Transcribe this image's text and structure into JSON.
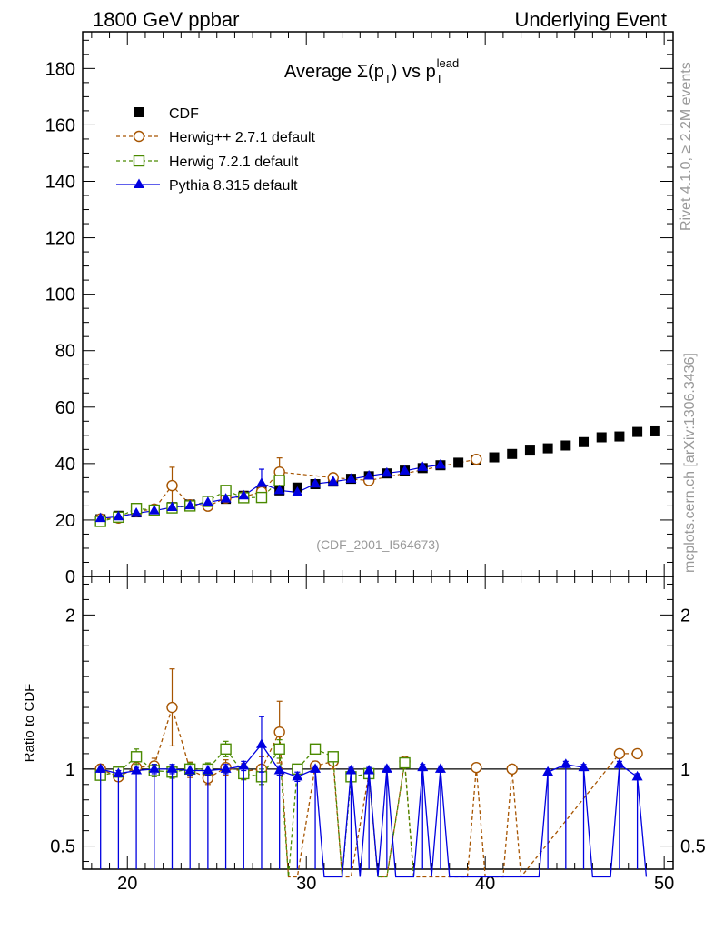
{
  "header": {
    "left": "1800 GeV ppbar",
    "right": "Underlying Event"
  },
  "side": {
    "rivet": "Rivet 4.1.0, ≥ 2.2M events",
    "mcplots": "mcplots.cern.ch [arXiv:1306.3436]"
  },
  "colors": {
    "cdf": "#000000",
    "herwigpp": "#a65400",
    "herwig7": "#4a8a00",
    "pythia": "#0000e0",
    "ref": "#999999"
  },
  "chart_data": {
    "type": "scatter",
    "title_parts": {
      "lead": "Average ",
      "sigma": "Σ(p",
      "t": "T",
      "close": ")",
      "vs": " vs p",
      "lead_sup": "lead"
    },
    "reference": "(CDF_2001_I564673)",
    "xlabel": "",
    "ylabel_main": "",
    "ylabel_ratio": "Ratio to CDF",
    "xlim": [
      17.5,
      50.5
    ],
    "ylim": [
      0,
      193
    ],
    "ratio_ylim": [
      0.35,
      2.25
    ],
    "x_ticks": [
      20,
      30,
      40,
      50
    ],
    "y_ticks": [
      0,
      20,
      40,
      60,
      80,
      100,
      120,
      140,
      160,
      180
    ],
    "ratio_ticks": [
      0.5,
      1,
      2
    ],
    "legend": [
      {
        "label": "CDF",
        "key": "cdf"
      },
      {
        "label": "Herwig++ 2.7.1 default",
        "key": "herwigpp"
      },
      {
        "label": "Herwig 7.2.1 default",
        "key": "herwig7"
      },
      {
        "label": "Pythia 8.315 default",
        "key": "pythia"
      }
    ],
    "cdf": {
      "x": [
        18.5,
        19.5,
        20.5,
        21.5,
        22.5,
        23.5,
        24.5,
        25.5,
        26.5,
        27.5,
        28.5,
        29.5,
        30.5,
        31.5,
        32.5,
        33.5,
        34.5,
        35.5,
        36.5,
        37.5,
        38.5,
        39.5,
        40.5,
        41.5,
        42.5,
        43.5,
        44.5,
        45.5,
        46.5,
        47.5,
        48.5,
        49.5
      ],
      "y": [
        20.3,
        21.5,
        22.7,
        23.6,
        24.6,
        25.5,
        26.5,
        27.5,
        28.6,
        29.9,
        30.5,
        31.5,
        32.7,
        33.6,
        34.6,
        35.5,
        36.5,
        37.5,
        38.4,
        39.4,
        40.3,
        41.4,
        42.2,
        43.4,
        44.6,
        45.4,
        46.4,
        47.6,
        49.3,
        49.6,
        51.2,
        51.4
      ]
    },
    "series": [
      {
        "name": "Herwig++ 2.7.1 default",
        "key": "herwigpp",
        "marker": "circle",
        "dashed": true,
        "x": [
          18.5,
          19.5,
          20.5,
          21.5,
          22.5,
          23.5,
          24.5,
          25.5,
          26.5,
          27.5,
          28.5,
          31.5,
          33.5,
          39.5
        ],
        "y": [
          20.4,
          20.7,
          23.0,
          23.9,
          32.2,
          25.4,
          24.9,
          27.8,
          28.2,
          30.0,
          37.0,
          35.0,
          34.0,
          41.5
        ],
        "err": [
          0.6,
          0.6,
          0.8,
          1.0,
          6.5,
          1.2,
          1.1,
          1.3,
          1.5,
          2.5,
          5.0,
          1.0,
          1.0,
          0.8
        ],
        "ratio_x": [
          18.5,
          19.5,
          20.5,
          21.5,
          22.5,
          23.5,
          24.5,
          25.5,
          26.5,
          27.5,
          28.5,
          29.0,
          29.5,
          30.5,
          31.5,
          32.0,
          32.5,
          33.5,
          34.0,
          34.5,
          35.5,
          36.0,
          39.0,
          39.5,
          40.0,
          41.0,
          41.5,
          42.0,
          47.5,
          48.5
        ],
        "ratio_y": [
          1.0,
          0.95,
          1.01,
          1.02,
          1.4,
          0.995,
          0.94,
          1.01,
          0.985,
          1.0,
          1.24,
          0.3,
          0.3,
          1.02,
          1.05,
          0.3,
          0.3,
          0.97,
          0.3,
          0.3,
          1.05,
          0.3,
          0.3,
          1.01,
          0.3,
          0.3,
          1.0,
          0.3,
          1.1,
          1.1
        ],
        "ratio_err": [
          0.03,
          0.03,
          0.04,
          0.05,
          0.25,
          0.05,
          0.04,
          0.05,
          0.05,
          0.08,
          0.2,
          0,
          0,
          0.03,
          0.05,
          0,
          0,
          0.03,
          0,
          0,
          0.03,
          0,
          0,
          0.02,
          0,
          0,
          0.02,
          0,
          0.02,
          0.02
        ]
      },
      {
        "name": "Herwig 7.2.1 default",
        "key": "herwig7",
        "marker": "square",
        "dashed": true,
        "x": [
          18.5,
          19.5,
          20.5,
          21.5,
          22.5,
          23.5,
          24.5,
          25.5,
          26.5,
          27.5,
          28.5
        ],
        "y": [
          19.5,
          21.0,
          24.1,
          23.5,
          24.3,
          25.0,
          26.6,
          30.5,
          27.9,
          28.0,
          34.0
        ],
        "err": [
          0.8,
          0.7,
          0.8,
          0.9,
          1.0,
          1.0,
          1.1,
          1.3,
          1.2,
          1.4,
          2.0
        ],
        "ratio_x": [
          18.5,
          19.5,
          20.5,
          21.5,
          22.5,
          23.5,
          24.5,
          25.5,
          26.5,
          27.5,
          28.5,
          29.0,
          29.5,
          30.5,
          31.5,
          32.0,
          32.5,
          33.5,
          34.0,
          34.5,
          35.5,
          36.0
        ],
        "ratio_y": [
          0.96,
          0.98,
          1.08,
          0.99,
          0.98,
          1.0,
          1.0,
          1.13,
          0.97,
          0.95,
          1.13,
          0.3,
          1.0,
          1.13,
          1.08,
          0.3,
          0.95,
          0.97,
          0.3,
          0.3,
          1.04,
          0.3
        ],
        "ratio_err": [
          0.03,
          0.03,
          0.05,
          0.04,
          0.04,
          0.04,
          0.04,
          0.05,
          0.04,
          0.05,
          0.06,
          0,
          0.02,
          0.03,
          0.03,
          0,
          0.02,
          0.02,
          0,
          0,
          0.02,
          0
        ]
      },
      {
        "name": "Pythia 8.315 default",
        "key": "pythia",
        "marker": "triangle",
        "dashed": false,
        "x": [
          18.5,
          19.5,
          20.5,
          21.5,
          22.5,
          23.5,
          24.5,
          25.5,
          26.5,
          27.5,
          28.5,
          29.5,
          30.5,
          31.5,
          32.5,
          33.5,
          34.5,
          35.5,
          36.5,
          37.5
        ],
        "y": [
          20.6,
          21.2,
          22.4,
          23.3,
          24.5,
          25.1,
          26.2,
          27.5,
          28.6,
          33.0,
          30.5,
          29.8,
          32.8,
          33.6,
          34.5,
          35.6,
          36.6,
          37.4,
          38.7,
          39.5
        ],
        "err": [
          0.5,
          0.5,
          0.6,
          0.7,
          0.8,
          0.8,
          0.8,
          0.9,
          1.0,
          5.0,
          1.0,
          1.0,
          1.0,
          1.0,
          1.0,
          1.0,
          1.0,
          1.0,
          1.0,
          1.0
        ],
        "ratio_x": [
          18.5,
          19.5,
          20.5,
          21.5,
          22.5,
          23.5,
          24.5,
          25.5,
          26.5,
          27.5,
          28.5,
          29.5,
          30.5,
          31.0,
          31.5,
          32.0,
          32.5,
          33.0,
          33.5,
          34.0,
          34.5,
          35.0,
          35.5,
          36.0,
          36.5,
          37.0,
          37.5,
          38.0,
          43.0,
          43.5,
          44.5,
          45.5,
          46.0,
          47.0,
          47.5,
          48.5,
          49.0
        ],
        "ratio_y": [
          1.0,
          0.97,
          0.99,
          1.0,
          1.0,
          0.99,
          0.99,
          1.0,
          1.02,
          1.16,
          0.99,
          0.95,
          1.0,
          0.3,
          0.3,
          0.3,
          0.99,
          0.3,
          0.99,
          0.3,
          1.0,
          0.3,
          0.3,
          0.3,
          1.01,
          0.3,
          1.0,
          0.3,
          0.3,
          0.98,
          1.03,
          1.01,
          0.3,
          0.3,
          1.03,
          0.95,
          0.3
        ],
        "ratio_err": [
          0.02,
          0.02,
          0.02,
          0.03,
          0.03,
          0.03,
          0.03,
          0.03,
          0.03,
          0.18,
          0.03,
          0.03,
          0.02,
          0,
          0,
          0,
          0.02,
          0,
          0.02,
          0,
          0.02,
          0,
          0,
          0,
          0.02,
          0,
          0.02,
          0,
          0,
          0.02,
          0.02,
          0.02,
          0,
          0,
          0.02,
          0.02,
          0
        ]
      }
    ]
  }
}
